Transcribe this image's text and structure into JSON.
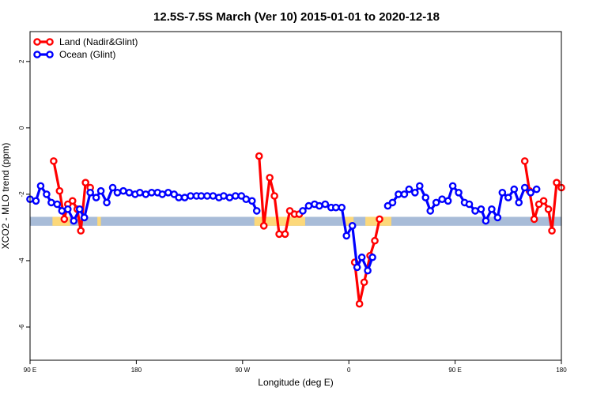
{
  "chart_data": {
    "type": "line",
    "title": "12.5S-7.5S March (Ver 10)   2015-01-01 to 2020-12-18",
    "xlabel": "Longitude (deg E)",
    "ylabel": "XCO2 - MLO trend (ppm)",
    "x_ticks": [
      {
        "value": 90,
        "label": "90 E"
      },
      {
        "value": 180,
        "label": "180"
      },
      {
        "value": 270,
        "label": "90 W"
      },
      {
        "value": 360,
        "label": "0"
      },
      {
        "value": 450,
        "label": "90 E"
      },
      {
        "value": 540,
        "label": "180"
      }
    ],
    "y_ticks": [
      2,
      0,
      -2,
      -4,
      -6
    ],
    "xlim": [
      90,
      540
    ],
    "ylim": [
      -7.0,
      2.9
    ],
    "grid": false,
    "legend_position": "top-left",
    "colors": {
      "land": "#ff0000",
      "ocean": "#0000ff",
      "ocean_band": "#a8bcd8",
      "land_band": "#fcd87a"
    },
    "surface_band": {
      "y_range": [
        -2.95,
        -2.68
      ],
      "land_segments": [
        [
          109,
          124
        ],
        [
          147,
          150
        ],
        [
          280,
          323
        ],
        [
          356,
          364
        ],
        [
          374,
          396
        ]
      ]
    },
    "series": [
      {
        "name": "Land (Nadir&Glint)",
        "color": "#ff0000",
        "segments": [
          [
            [
              110,
              -1.0
            ],
            [
              115,
              -1.9
            ],
            [
              119,
              -2.75
            ],
            [
              122,
              -2.3
            ],
            [
              126,
              -2.2
            ],
            [
              130,
              -2.45
            ],
            [
              133,
              -3.1
            ],
            [
              137,
              -1.65
            ],
            [
              141,
              -1.8
            ]
          ],
          [
            [
              284,
              -0.85
            ],
            [
              288,
              -2.95
            ],
            [
              293,
              -1.5
            ],
            [
              297,
              -2.05
            ],
            [
              301,
              -3.2
            ],
            [
              306,
              -3.2
            ],
            [
              310,
              -2.5
            ],
            [
              314,
              -2.6
            ],
            [
              318,
              -2.6
            ]
          ],
          [
            [
              365,
              -4.05
            ],
            [
              369,
              -5.3
            ],
            [
              373,
              -4.65
            ],
            [
              378,
              -3.85
            ],
            [
              382,
              -3.4
            ],
            [
              386,
              -2.75
            ]
          ],
          [
            [
              509,
              -1.0
            ],
            [
              513,
              -1.9
            ],
            [
              517,
              -2.75
            ],
            [
              521,
              -2.3
            ],
            [
              525,
              -2.2
            ],
            [
              529,
              -2.45
            ],
            [
              532,
              -3.1
            ],
            [
              536,
              -1.65
            ],
            [
              540,
              -1.8
            ]
          ]
        ]
      },
      {
        "name": "Ocean (Glint)",
        "color": "#0000ff",
        "segments": [
          [
            [
              90,
              -2.15
            ],
            [
              95,
              -2.2
            ],
            [
              99,
              -1.75
            ],
            [
              104,
              -2.0
            ],
            [
              108,
              -2.25
            ],
            [
              113,
              -2.3
            ],
            [
              117,
              -2.5
            ],
            [
              122,
              -2.45
            ],
            [
              127,
              -2.8
            ],
            [
              132,
              -2.45
            ],
            [
              136,
              -2.7
            ],
            [
              141,
              -1.95
            ],
            [
              146,
              -2.1
            ],
            [
              150,
              -1.9
            ],
            [
              155,
              -2.25
            ],
            [
              160,
              -1.8
            ],
            [
              164,
              -1.95
            ],
            [
              169,
              -1.9
            ],
            [
              174,
              -1.95
            ],
            [
              179,
              -2.0
            ],
            [
              183,
              -1.95
            ],
            [
              188,
              -2.0
            ],
            [
              193,
              -1.95
            ],
            [
              198,
              -1.95
            ],
            [
              202,
              -2.0
            ],
            [
              207,
              -1.95
            ],
            [
              212,
              -2.0
            ],
            [
              216,
              -2.1
            ],
            [
              221,
              -2.1
            ],
            [
              226,
              -2.05
            ],
            [
              231,
              -2.05
            ],
            [
              235,
              -2.05
            ],
            [
              240,
              -2.05
            ],
            [
              245,
              -2.05
            ],
            [
              250,
              -2.1
            ],
            [
              254,
              -2.05
            ],
            [
              259,
              -2.1
            ],
            [
              264,
              -2.05
            ],
            [
              269,
              -2.05
            ],
            [
              273,
              -2.15
            ],
            [
              278,
              -2.2
            ],
            [
              282,
              -2.5
            ]
          ],
          [
            [
              321,
              -2.5
            ],
            [
              326,
              -2.35
            ],
            [
              331,
              -2.3
            ],
            [
              335,
              -2.35
            ],
            [
              340,
              -2.3
            ],
            [
              345,
              -2.4
            ],
            [
              349,
              -2.4
            ],
            [
              354,
              -2.4
            ],
            [
              358,
              -3.25
            ],
            [
              363,
              -2.95
            ],
            [
              367,
              -4.2
            ],
            [
              371,
              -3.9
            ],
            [
              376,
              -4.3
            ],
            [
              380,
              -3.9
            ]
          ],
          [
            [
              393,
              -2.35
            ],
            [
              397,
              -2.25
            ],
            [
              402,
              -2.0
            ],
            [
              407,
              -2.0
            ],
            [
              411,
              -1.85
            ],
            [
              416,
              -1.95
            ],
            [
              420,
              -1.75
            ],
            [
              425,
              -2.1
            ],
            [
              429,
              -2.5
            ],
            [
              434,
              -2.25
            ],
            [
              439,
              -2.15
            ],
            [
              444,
              -2.2
            ],
            [
              448,
              -1.75
            ],
            [
              453,
              -1.95
            ],
            [
              458,
              -2.25
            ],
            [
              462,
              -2.3
            ],
            [
              467,
              -2.5
            ],
            [
              472,
              -2.45
            ],
            [
              476,
              -2.8
            ],
            [
              481,
              -2.45
            ],
            [
              486,
              -2.7
            ],
            [
              490,
              -1.95
            ],
            [
              495,
              -2.1
            ],
            [
              500,
              -1.85
            ],
            [
              504,
              -2.25
            ],
            [
              509,
              -1.8
            ],
            [
              514,
              -1.95
            ],
            [
              519,
              -1.85
            ]
          ]
        ]
      }
    ]
  }
}
